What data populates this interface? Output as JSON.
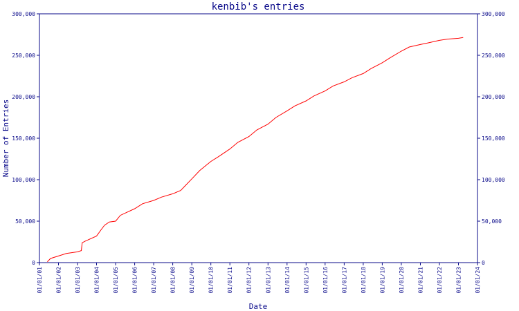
{
  "chart_data": {
    "type": "line",
    "title": "kenbib's entries",
    "xlabel": "Date",
    "ylabel": "Number of Entries",
    "ylim": [
      0,
      300000
    ],
    "yticks": [
      0,
      50000,
      100000,
      150000,
      200000,
      250000,
      300000
    ],
    "ytick_labels": [
      "0",
      "50,000",
      "100,000",
      "150,000",
      "200,000",
      "250,000",
      "300,000"
    ],
    "xticks": [
      "01/01/01",
      "01/01/02",
      "01/01/03",
      "01/01/04",
      "01/01/05",
      "01/01/06",
      "01/01/07",
      "01/01/08",
      "01/01/09",
      "01/01/10",
      "01/01/11",
      "01/01/12",
      "01/01/13",
      "01/01/14",
      "01/01/15",
      "01/01/16",
      "01/01/17",
      "01/01/18",
      "01/01/19",
      "01/01/20",
      "01/01/21",
      "01/01/22",
      "01/01/23",
      "01/01/24"
    ],
    "xlim": [
      "2001-01-01",
      "2024-01-01"
    ],
    "grid": false,
    "colors": {
      "line": "#ff0000",
      "axis": "#0a0a8a",
      "text": "#0a0a8a"
    },
    "series": [
      {
        "x": [
          "2001-06-01",
          "2001-08-01",
          "2002-01-01",
          "2002-06-01",
          "2003-01-01",
          "2003-03-15",
          "2003-04-01",
          "2003-06-01",
          "2004-01-01",
          "2004-04-01",
          "2004-06-01",
          "2004-09-01",
          "2005-01-01",
          "2005-04-01",
          "2006-01-01",
          "2006-06-01",
          "2007-01-01",
          "2007-06-01",
          "2008-01-01",
          "2008-06-01",
          "2008-09-01",
          "2009-01-01",
          "2009-06-01",
          "2010-01-01",
          "2010-06-01",
          "2011-01-01",
          "2011-06-01",
          "2012-01-01",
          "2012-06-01",
          "2013-01-01",
          "2013-06-01",
          "2014-01-01",
          "2014-06-01",
          "2015-01-01",
          "2015-06-01",
          "2016-01-01",
          "2016-06-01",
          "2017-01-01",
          "2017-06-01",
          "2018-01-01",
          "2018-06-01",
          "2019-01-01",
          "2019-06-01",
          "2020-01-01",
          "2020-06-01",
          "2021-01-01",
          "2021-06-01",
          "2022-01-01",
          "2022-06-01",
          "2023-01-01",
          "2023-04-01"
        ],
        "y": [
          1000,
          5000,
          8000,
          11000,
          13000,
          14500,
          24000,
          26000,
          32000,
          40000,
          45000,
          49000,
          50000,
          57000,
          65000,
          71000,
          75000,
          79000,
          83000,
          87000,
          93000,
          101000,
          111000,
          122000,
          128000,
          137000,
          145000,
          152000,
          160000,
          167000,
          175000,
          183000,
          189000,
          195000,
          201000,
          207000,
          213000,
          218000,
          223000,
          228000,
          234000,
          241000,
          247000,
          255000,
          260000,
          263000,
          265000,
          268000,
          269500,
          270500,
          271500
        ]
      }
    ]
  }
}
